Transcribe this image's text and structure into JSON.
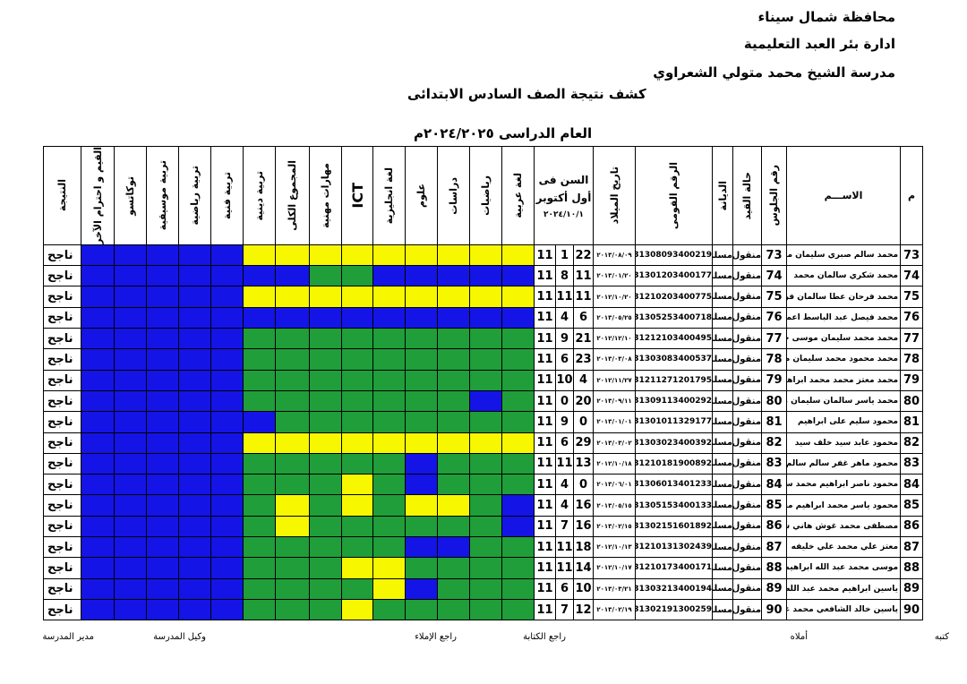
{
  "header": {
    "governorate": "محافظة شمال سيناء",
    "administration": "ادارة بئر العبد التعليمية",
    "school": "مدرسة الشيخ محمد متولي الشعراوي",
    "title": "كشف نتيجة الصف السادس الابتدائى",
    "year": "العام الدراسى ٢٠٢٤/٢٠٢٥م"
  },
  "table": {
    "columns": [
      "م",
      "الاســـم",
      "رقم الجلوس",
      "حالة القيد",
      "الديانة",
      "الرقم القومى",
      "تاريخ الميلاد"
    ],
    "age_column": {
      "title": "السن فى أول أكتوبر",
      "date": "٢٠٢٤/١٠/١"
    },
    "subjects": [
      "لغة عربية",
      "رياضيات",
      "دراسات",
      "علوم",
      "لغة انجليزية",
      "ICT",
      "مهارات مهنية",
      "المجموع الكلى",
      "تربية دينية",
      "تربية فنية",
      "تربية رياضية",
      "تربية موسيقية",
      "توكاتسو",
      "القيم و احترام الآخر"
    ],
    "result_column": "النتيجة",
    "palette": {
      "B": "#1414e6",
      "Y": "#f7f700",
      "G": "#1f9e3a"
    },
    "rows": [
      {
        "cells": [
          "73",
          "محمد سالم صبري سليمان محمد",
          "73",
          "منقول",
          "مسلم",
          "31308093400219",
          "٢٠١٣/٠٨/٠٩",
          "22",
          "1",
          "11",
          "ناجح"
        ],
        "colors": "YYYYYYYYYBBBBB"
      },
      {
        "cells": [
          "74",
          "محمد شكري سالمان محمد",
          "74",
          "منقول",
          "مسلم",
          "31301203400177",
          "٢٠١٣/٠١/٢٠",
          "11",
          "8",
          "11",
          "ناجح"
        ],
        "colors": "BBBBBGGBBBBBBB"
      },
      {
        "cells": [
          "75",
          "محمد فرحان عطا سالمان فرحان",
          "75",
          "منقول",
          "مسلم",
          "31210203400775",
          "٢٠١٢/١٠/٢٠",
          "11",
          "11",
          "11",
          "ناجح"
        ],
        "colors": "YYYYYYYYYBBBBB"
      },
      {
        "cells": [
          "76",
          "محمد فيصل عبد الباسط اعمير عميره",
          "76",
          "منقول",
          "مسلم",
          "31305253400718",
          "٢٠١٣/٠٥/٢٥",
          "6",
          "4",
          "11",
          "ناجح"
        ],
        "colors": "BBBBBBBBBBBBBB"
      },
      {
        "cells": [
          "77",
          "محمد محمد سليمان موسى حسن",
          "77",
          "منقول",
          "مسلم",
          "31212103400495",
          "٢٠١٢/١٢/١٠",
          "21",
          "9",
          "11",
          "ناجح"
        ],
        "colors": "GGGGGGGGGBBBBB"
      },
      {
        "cells": [
          "78",
          "محمد محمود محمد سليمان محمد",
          "78",
          "منقول",
          "مسلم",
          "31303083400537",
          "٢٠١٣/٠٣/٠٨",
          "23",
          "6",
          "11",
          "ناجح"
        ],
        "colors": "GGGGGGGGGBBBBB"
      },
      {
        "cells": [
          "79",
          "محمد معتز محمد محمد ابراهيم البصيلي",
          "79",
          "منقول",
          "مسلم",
          "31211271201795",
          "٢٠١٢/١١/٢٧",
          "4",
          "10",
          "11",
          "ناجح"
        ],
        "colors": "GGGGGGGGGBBBBB"
      },
      {
        "cells": [
          "80",
          "محمد ياسر سالمان سليمان موسى",
          "80",
          "منقول",
          "مسلم",
          "31309113400292",
          "٢٠١٣/٠٩/١١",
          "20",
          "0",
          "11",
          "ناجح"
        ],
        "colors": "GBGGGGGGGBBBBB"
      },
      {
        "cells": [
          "81",
          "محمود سليم على ابراهيم",
          "81",
          "منقول",
          "مسلم",
          "31301011329177",
          "٢٠١٣/٠١/٠١",
          "0",
          "9",
          "11",
          "ناجح"
        ],
        "colors": "GGGGGGGGBBBBBB"
      },
      {
        "cells": [
          "82",
          "محمود عابد سيد خلف سيد",
          "82",
          "منقول",
          "مسلم",
          "31303023400392",
          "٢٠١٣/٠٣/٠٢",
          "29",
          "6",
          "11",
          "ناجح"
        ],
        "colors": "YYYYYYYYYBBBBB"
      },
      {
        "cells": [
          "83",
          "محمود ماهر غفر سالم سالم",
          "83",
          "منقول",
          "مسلم",
          "31210181900892",
          "٢٠١٢/١٠/١٨",
          "13",
          "11",
          "11",
          "ناجح"
        ],
        "colors": "GGGBGGGGGBBBBB"
      },
      {
        "cells": [
          "84",
          "محمود ناصر ابراهيم محمد سليم",
          "84",
          "منقول",
          "مسلم",
          "31306013401233",
          "٢٠١٣/٠٦/٠١",
          "0",
          "4",
          "11",
          "ناجح"
        ],
        "colors": "GGGBGYGGGBBBBB"
      },
      {
        "cells": [
          "85",
          "محمود ياسر محمد ابراهيم محمد",
          "85",
          "منقول",
          "مسلم",
          "31305153400133",
          "٢٠١٣/٠٥/١٥",
          "16",
          "4",
          "11",
          "ناجح"
        ],
        "colors": "BGYYGYGYGBBBBB"
      },
      {
        "cells": [
          "86",
          "مصطفى محمد غوش هاني سليم",
          "86",
          "منقول",
          "مسلم",
          "31302151601892",
          "٢٠١٣/٠٢/١٥",
          "16",
          "7",
          "11",
          "ناجح"
        ],
        "colors": "BGGGGGGYGBBBBB"
      },
      {
        "cells": [
          "87",
          "معتز علي محمد علي خليفه",
          "87",
          "منقول",
          "مسلم",
          "31210131302439",
          "٢٠١٢/١٠/١٣",
          "18",
          "11",
          "11",
          "ناجح"
        ],
        "colors": "GGBBGGGGGBBBBB"
      },
      {
        "cells": [
          "88",
          "موسى محمد عبد الله ابراهيم",
          "88",
          "منقول",
          "مسلم",
          "31210173400171",
          "٢٠١٢/١٠/١٧",
          "14",
          "11",
          "11",
          "ناجح"
        ],
        "colors": "GGGGYYGGGBBBBB"
      },
      {
        "cells": [
          "89",
          "ياسين ابراهيم محمد عبد الله حسن",
          "89",
          "منقول",
          "مسلم",
          "31303213400194",
          "٢٠١٣/٠٣/٢١",
          "10",
          "6",
          "11",
          "ناجح"
        ],
        "colors": "GGGBYGGGGBBBBB"
      },
      {
        "cells": [
          "90",
          "ياسين خالد الشافعي محمد عبد الله",
          "90",
          "منقول",
          "مسلم",
          "31302191300259",
          "٢٠١٣/٠٢/١٩",
          "12",
          "7",
          "11",
          "ناجح"
        ],
        "colors": "GGGGGYGGGBBBBB"
      }
    ]
  },
  "footer": [
    "كتبه",
    "أملاه",
    "راجع الكتابة",
    "راجع الإملاء",
    "وكيل المدرسة",
    "مدير المدرسة"
  ]
}
